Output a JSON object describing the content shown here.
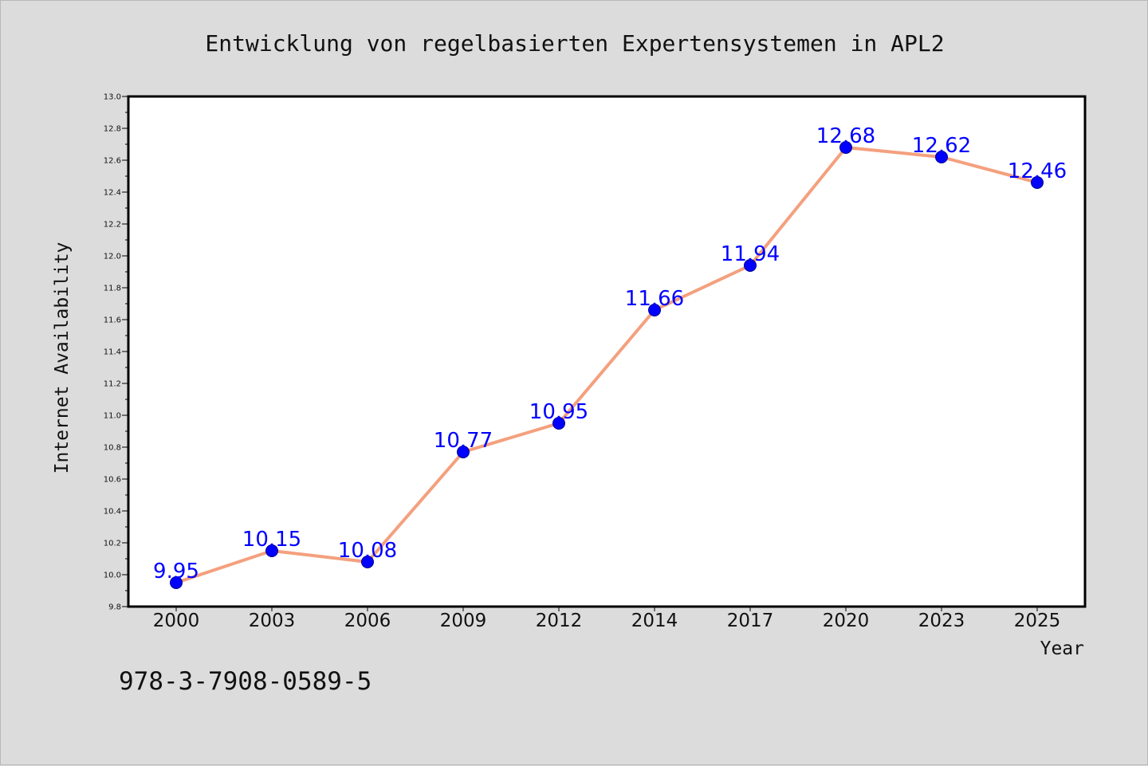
{
  "chart_data": {
    "type": "line",
    "title": "Entwicklung von regelbasierten Expertensystemen in APL2",
    "xlabel": "Year",
    "ylabel": "Internet Availability",
    "categories": [
      "2000",
      "2003",
      "2006",
      "2009",
      "2012",
      "2014",
      "2017",
      "2020",
      "2023",
      "2025"
    ],
    "series": [
      {
        "values": [
          9.95,
          10.15,
          10.08,
          10.77,
          10.95,
          11.66,
          11.94,
          12.68,
          12.62,
          12.46
        ],
        "labels": [
          "9.95",
          "10.15",
          "10.08",
          "10.77",
          "10.95",
          "11.66",
          "11.94",
          "12.68",
          "12.62",
          "12.46"
        ]
      }
    ],
    "ylim": [
      9.8,
      13.0
    ],
    "yticks": [
      "9.8",
      "10.0",
      "10.2",
      "10.4",
      "10.6",
      "10.8",
      "11.0",
      "11.2",
      "11.4",
      "11.6",
      "11.8",
      "12.0",
      "12.2",
      "12.4",
      "12.6",
      "12.8",
      "13.0"
    ],
    "grid": false,
    "line_color": "#f4a07e",
    "marker_color": "#0000ff",
    "label_color": "#0000ff"
  },
  "annotation": "978-3-7908-0589-5"
}
